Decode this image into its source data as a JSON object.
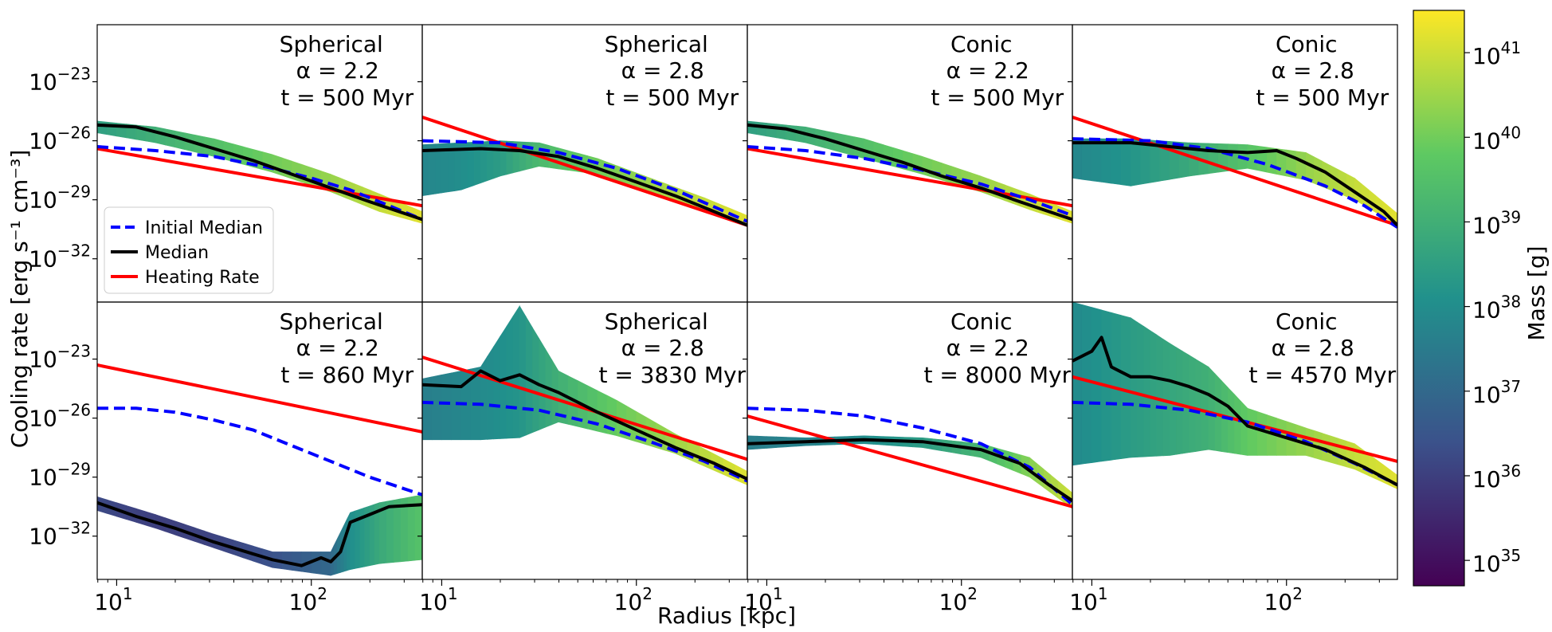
{
  "figure": {
    "xlabel": "Radius [kpc]",
    "ylabel": "Cooling rate [erg s⁻¹ cm⁻³]",
    "colorbar_label": "Mass [g]"
  },
  "colors": {
    "initial_median": "#0000ff",
    "median": "#000000",
    "heating_rate": "#ff0000",
    "colormap": [
      "#440154",
      "#3b528b",
      "#21918c",
      "#5ec962",
      "#fde725"
    ]
  },
  "legend": {
    "location": "lower-left of top-left panel",
    "entries": [
      "Initial Median",
      "Median",
      "Heating Rate"
    ]
  },
  "colorbar": {
    "scale": "log",
    "range_log10": [
      34.7,
      41.5
    ],
    "ticks": [
      {
        "value": 35,
        "base": "10",
        "exp": "35"
      },
      {
        "value": 36,
        "base": "10",
        "exp": "36"
      },
      {
        "value": 37,
        "base": "10",
        "exp": "37"
      },
      {
        "value": 38,
        "base": "10",
        "exp": "38"
      },
      {
        "value": 39,
        "base": "10",
        "exp": "39"
      },
      {
        "value": 40,
        "base": "10",
        "exp": "40"
      },
      {
        "value": 41,
        "base": "10",
        "exp": "41"
      }
    ]
  },
  "chart_data": {
    "type": "heatmap",
    "xscale": "log",
    "yscale": "log",
    "xlim_log10": [
      0.9,
      2.57
    ],
    "ylim_log10": [
      -34.2,
      -20.1
    ],
    "xticks": [
      {
        "value": 1,
        "base": "10",
        "exp": "1"
      },
      {
        "value": 2,
        "base": "10",
        "exp": "2"
      }
    ],
    "yticks": [
      {
        "value": -23,
        "base": "10",
        "exp": "−23"
      },
      {
        "value": -26,
        "base": "10",
        "exp": "−26"
      },
      {
        "value": -29,
        "base": "10",
        "exp": "−29"
      },
      {
        "value": -32,
        "base": "10",
        "exp": "−32"
      }
    ],
    "panels": [
      {
        "title": "Spherical",
        "alpha": "α = 2.2",
        "time": "t = 500 Myr",
        "heating_rate": [
          [
            0.9,
            -26.4
          ],
          [
            2.57,
            -29.3
          ]
        ],
        "initial_median": [
          [
            0.9,
            -26.3
          ],
          [
            1.2,
            -26.5
          ],
          [
            1.5,
            -26.8
          ],
          [
            1.8,
            -27.4
          ],
          [
            2.0,
            -27.9
          ],
          [
            2.2,
            -28.5
          ],
          [
            2.4,
            -29.3
          ],
          [
            2.57,
            -30.0
          ]
        ],
        "median": [
          [
            0.9,
            -25.2
          ],
          [
            1.1,
            -25.3
          ],
          [
            1.3,
            -25.8
          ],
          [
            1.5,
            -26.4
          ],
          [
            1.7,
            -27.0
          ],
          [
            1.9,
            -27.7
          ],
          [
            2.1,
            -28.4
          ],
          [
            2.3,
            -29.1
          ],
          [
            2.45,
            -29.6
          ],
          [
            2.57,
            -30.0
          ]
        ],
        "mass_distribution": [
          [
            0.9,
            -25.0,
            -25.6,
            38.5
          ],
          [
            1.2,
            -25.3,
            -26.1,
            39.0
          ],
          [
            1.5,
            -25.9,
            -26.8,
            39.5
          ],
          [
            1.8,
            -26.7,
            -27.6,
            40.0
          ],
          [
            2.1,
            -27.7,
            -28.6,
            40.4
          ],
          [
            2.35,
            -28.7,
            -29.6,
            40.9
          ],
          [
            2.57,
            -29.6,
            -30.2,
            41.2
          ]
        ]
      },
      {
        "title": "Spherical",
        "alpha": "α = 2.8",
        "time": "t = 500 Myr",
        "heating_rate": [
          [
            0.9,
            -24.8
          ],
          [
            2.57,
            -30.3
          ]
        ],
        "initial_median": [
          [
            0.9,
            -26.0
          ],
          [
            1.3,
            -26.1
          ],
          [
            1.6,
            -26.6
          ],
          [
            1.9,
            -27.4
          ],
          [
            2.2,
            -28.5
          ],
          [
            2.57,
            -30.1
          ]
        ],
        "median": [
          [
            0.9,
            -26.5
          ],
          [
            1.2,
            -26.4
          ],
          [
            1.4,
            -26.5
          ],
          [
            1.6,
            -26.8
          ],
          [
            1.8,
            -27.4
          ],
          [
            2.0,
            -28.1
          ],
          [
            2.2,
            -28.8
          ],
          [
            2.4,
            -29.6
          ],
          [
            2.57,
            -30.3
          ]
        ],
        "mass_distribution": [
          [
            0.9,
            -26.2,
            -28.8,
            37.8
          ],
          [
            1.1,
            -26.1,
            -28.5,
            38.0
          ],
          [
            1.3,
            -26.0,
            -27.8,
            38.4
          ],
          [
            1.5,
            -26.1,
            -27.3,
            39.3
          ],
          [
            1.8,
            -26.9,
            -27.7,
            40.0
          ],
          [
            2.1,
            -28.0,
            -28.7,
            40.5
          ],
          [
            2.35,
            -28.9,
            -29.6,
            40.9
          ],
          [
            2.57,
            -29.8,
            -30.3,
            41.2
          ]
        ]
      },
      {
        "title": "Conic",
        "alpha": "α = 2.2",
        "time": "t = 500 Myr",
        "heating_rate": [
          [
            0.9,
            -26.4
          ],
          [
            2.57,
            -29.3
          ]
        ],
        "initial_median": [
          [
            0.9,
            -26.3
          ],
          [
            1.2,
            -26.5
          ],
          [
            1.5,
            -26.9
          ],
          [
            1.8,
            -27.5
          ],
          [
            2.1,
            -28.2
          ],
          [
            2.35,
            -29.0
          ],
          [
            2.57,
            -29.8
          ]
        ],
        "median": [
          [
            0.9,
            -25.2
          ],
          [
            1.1,
            -25.4
          ],
          [
            1.3,
            -25.9
          ],
          [
            1.5,
            -26.5
          ],
          [
            1.7,
            -27.1
          ],
          [
            1.9,
            -27.8
          ],
          [
            2.1,
            -28.4
          ],
          [
            2.3,
            -29.1
          ],
          [
            2.45,
            -29.6
          ],
          [
            2.57,
            -30.0
          ]
        ],
        "mass_distribution": [
          [
            0.9,
            -25.0,
            -25.6,
            38.5
          ],
          [
            1.2,
            -25.3,
            -26.1,
            39.0
          ],
          [
            1.5,
            -25.9,
            -26.9,
            39.5
          ],
          [
            1.8,
            -26.8,
            -27.7,
            40.0
          ],
          [
            2.1,
            -27.8,
            -28.6,
            40.4
          ],
          [
            2.35,
            -28.7,
            -29.5,
            40.9
          ],
          [
            2.57,
            -29.6,
            -30.2,
            41.2
          ]
        ]
      },
      {
        "title": "Conic",
        "alpha": "α = 2.8",
        "time": "t = 500 Myr",
        "heating_rate": [
          [
            0.9,
            -24.8
          ],
          [
            2.57,
            -30.3
          ]
        ],
        "initial_median": [
          [
            0.9,
            -25.9
          ],
          [
            1.3,
            -26.0
          ],
          [
            1.6,
            -26.4
          ],
          [
            1.9,
            -27.2
          ],
          [
            2.2,
            -28.3
          ],
          [
            2.4,
            -29.3
          ],
          [
            2.57,
            -30.4
          ]
        ],
        "median": [
          [
            0.9,
            -26.1
          ],
          [
            1.2,
            -26.1
          ],
          [
            1.4,
            -26.3
          ],
          [
            1.6,
            -26.5
          ],
          [
            1.8,
            -26.6
          ],
          [
            1.95,
            -26.5
          ],
          [
            2.05,
            -26.9
          ],
          [
            2.2,
            -27.6
          ],
          [
            2.35,
            -28.6
          ],
          [
            2.5,
            -29.6
          ],
          [
            2.57,
            -30.3
          ]
        ],
        "mass_distribution": [
          [
            0.9,
            -25.9,
            -27.9,
            37.8
          ],
          [
            1.2,
            -25.9,
            -28.3,
            38.2
          ],
          [
            1.5,
            -26.1,
            -27.8,
            38.8
          ],
          [
            1.8,
            -26.2,
            -27.4,
            39.6
          ],
          [
            2.1,
            -26.6,
            -28.0,
            40.4
          ],
          [
            2.35,
            -27.9,
            -29.0,
            40.9
          ],
          [
            2.57,
            -29.7,
            -30.3,
            41.2
          ]
        ]
      },
      {
        "title": "Spherical",
        "alpha": "α = 2.2",
        "time": "t = 860 Myr",
        "heating_rate": [
          [
            0.9,
            -23.3
          ],
          [
            2.57,
            -26.7
          ]
        ],
        "initial_median": [
          [
            0.9,
            -25.5
          ],
          [
            1.1,
            -25.5
          ],
          [
            1.3,
            -25.7
          ],
          [
            1.5,
            -26.1
          ],
          [
            1.7,
            -26.6
          ],
          [
            1.9,
            -27.4
          ],
          [
            2.1,
            -28.2
          ],
          [
            2.3,
            -29.0
          ],
          [
            2.57,
            -29.9
          ]
        ],
        "median": [
          [
            0.9,
            -30.3
          ],
          [
            1.1,
            -31.0
          ],
          [
            1.3,
            -31.6
          ],
          [
            1.5,
            -32.3
          ],
          [
            1.7,
            -32.9
          ],
          [
            1.8,
            -33.2
          ],
          [
            1.95,
            -33.5
          ],
          [
            2.05,
            -33.1
          ],
          [
            2.1,
            -33.3
          ],
          [
            2.15,
            -32.8
          ],
          [
            2.2,
            -31.3
          ],
          [
            2.3,
            -30.9
          ],
          [
            2.4,
            -30.5
          ],
          [
            2.57,
            -30.4
          ]
        ],
        "mass_distribution": [
          [
            0.9,
            -30.0,
            -30.7,
            36.2
          ],
          [
            1.2,
            -30.9,
            -31.6,
            36.0
          ],
          [
            1.5,
            -31.9,
            -32.6,
            36.1
          ],
          [
            1.8,
            -32.8,
            -33.6,
            36.4
          ],
          [
            2.1,
            -32.8,
            -34.0,
            37.0
          ],
          [
            2.2,
            -30.8,
            -33.7,
            38.0
          ],
          [
            2.35,
            -30.3,
            -33.4,
            38.8
          ],
          [
            2.57,
            -29.9,
            -33.2,
            39.6
          ]
        ]
      },
      {
        "title": "Spherical",
        "alpha": "α = 2.8",
        "time": "t = 3830 Myr",
        "heating_rate": [
          [
            0.9,
            -22.9
          ],
          [
            2.57,
            -28.1
          ]
        ],
        "initial_median": [
          [
            0.9,
            -25.2
          ],
          [
            1.2,
            -25.3
          ],
          [
            1.5,
            -25.6
          ],
          [
            1.8,
            -26.3
          ],
          [
            2.1,
            -27.3
          ],
          [
            2.35,
            -28.2
          ],
          [
            2.57,
            -29.2
          ]
        ],
        "median": [
          [
            0.9,
            -24.3
          ],
          [
            1.1,
            -24.4
          ],
          [
            1.2,
            -23.6
          ],
          [
            1.3,
            -24.1
          ],
          [
            1.4,
            -23.8
          ],
          [
            1.5,
            -24.3
          ],
          [
            1.6,
            -24.7
          ],
          [
            1.8,
            -25.7
          ],
          [
            2.0,
            -26.6
          ],
          [
            2.2,
            -27.5
          ],
          [
            2.4,
            -28.3
          ],
          [
            2.57,
            -29.1
          ]
        ],
        "mass_distribution": [
          [
            0.9,
            -24.0,
            -27.1,
            37.6
          ],
          [
            1.2,
            -23.4,
            -27.1,
            37.9
          ],
          [
            1.4,
            -20.3,
            -27.0,
            38.2
          ],
          [
            1.6,
            -23.6,
            -26.2,
            39.0
          ],
          [
            1.9,
            -25.1,
            -26.9,
            39.9
          ],
          [
            2.2,
            -26.8,
            -27.8,
            40.5
          ],
          [
            2.57,
            -28.7,
            -29.4,
            41.2
          ]
        ]
      },
      {
        "title": "Conic",
        "alpha": "α = 2.2",
        "time": "t = 8000 Myr",
        "heating_rate": [
          [
            0.9,
            -25.9
          ],
          [
            2.57,
            -30.5
          ]
        ],
        "initial_median": [
          [
            0.9,
            -25.5
          ],
          [
            1.2,
            -25.6
          ],
          [
            1.5,
            -25.9
          ],
          [
            1.8,
            -26.5
          ],
          [
            2.1,
            -27.3
          ],
          [
            2.35,
            -28.5
          ],
          [
            2.57,
            -30.4
          ]
        ],
        "median": [
          [
            0.9,
            -27.3
          ],
          [
            1.2,
            -27.2
          ],
          [
            1.5,
            -27.1
          ],
          [
            1.8,
            -27.2
          ],
          [
            2.1,
            -27.6
          ],
          [
            2.3,
            -28.3
          ],
          [
            2.45,
            -29.4
          ],
          [
            2.57,
            -30.2
          ]
        ],
        "mass_distribution": [
          [
            0.9,
            -26.9,
            -27.6,
            37.6
          ],
          [
            1.2,
            -27.0,
            -27.4,
            37.7
          ],
          [
            1.5,
            -26.9,
            -27.3,
            38.0
          ],
          [
            1.8,
            -27.0,
            -27.5,
            38.4
          ],
          [
            2.1,
            -27.3,
            -28.0,
            39.2
          ],
          [
            2.35,
            -28.0,
            -29.0,
            40.2
          ],
          [
            2.57,
            -29.8,
            -30.6,
            41.0
          ]
        ]
      },
      {
        "title": "Conic",
        "alpha": "α = 2.8",
        "time": "t = 4570 Myr",
        "heating_rate": [
          [
            0.9,
            -23.9
          ],
          [
            2.57,
            -28.2
          ]
        ],
        "initial_median": [
          [
            0.9,
            -25.2
          ],
          [
            1.2,
            -25.3
          ],
          [
            1.5,
            -25.6
          ],
          [
            1.8,
            -26.2
          ],
          [
            2.1,
            -27.2
          ],
          [
            2.35,
            -28.3
          ],
          [
            2.57,
            -29.4
          ]
        ],
        "median": [
          [
            0.9,
            -23.1
          ],
          [
            1.0,
            -22.6
          ],
          [
            1.05,
            -21.9
          ],
          [
            1.1,
            -23.4
          ],
          [
            1.2,
            -23.9
          ],
          [
            1.3,
            -23.9
          ],
          [
            1.4,
            -24.1
          ],
          [
            1.5,
            -24.4
          ],
          [
            1.6,
            -24.8
          ],
          [
            1.7,
            -25.4
          ],
          [
            1.8,
            -26.4
          ],
          [
            2.0,
            -27.0
          ],
          [
            2.2,
            -27.6
          ],
          [
            2.4,
            -28.5
          ],
          [
            2.57,
            -29.4
          ]
        ],
        "mass_distribution": [
          [
            0.9,
            -20.1,
            -28.4,
            37.9
          ],
          [
            1.2,
            -20.9,
            -28.0,
            38.4
          ],
          [
            1.4,
            -22.2,
            -27.9,
            38.7
          ],
          [
            1.6,
            -23.4,
            -27.6,
            39.0
          ],
          [
            1.8,
            -25.5,
            -27.9,
            39.8
          ],
          [
            2.1,
            -26.5,
            -27.9,
            40.4
          ],
          [
            2.35,
            -27.3,
            -28.6,
            40.9
          ],
          [
            2.57,
            -28.9,
            -29.6,
            41.2
          ]
        ]
      }
    ]
  }
}
